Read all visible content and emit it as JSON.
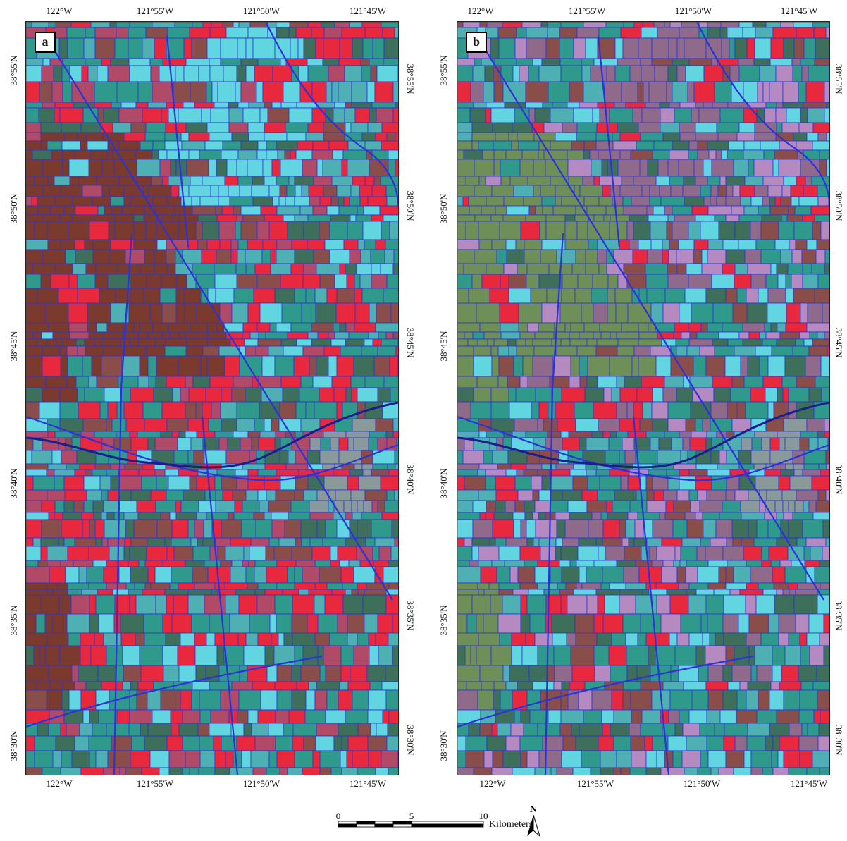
{
  "panels": [
    {
      "label": "a",
      "palette": "a"
    },
    {
      "label": "b",
      "palette": "b"
    }
  ],
  "axes": {
    "lon_ticks": [
      "122°W",
      "121°55'W",
      "121°50'W",
      "121°45'W"
    ],
    "lat_ticks": [
      "38°55'N",
      "38°50'N",
      "38°45'N",
      "38°40'N",
      "38°35'N",
      "38°30'N"
    ]
  },
  "scale": {
    "labels": [
      "0",
      "5",
      "10"
    ],
    "unit": "Kilometers"
  },
  "north_arrow": {
    "label": "N",
    "icon": "north-arrow-icon"
  },
  "colors": {
    "field_red": "#e8283c",
    "field_cyan": "#62d6e0",
    "field_teal": "#2f9a8c",
    "field_brown": "#8a4e4a",
    "boundary": "#2a32d8",
    "hills_a": "#7a3b2e",
    "hills_b": "#6f8f58"
  }
}
